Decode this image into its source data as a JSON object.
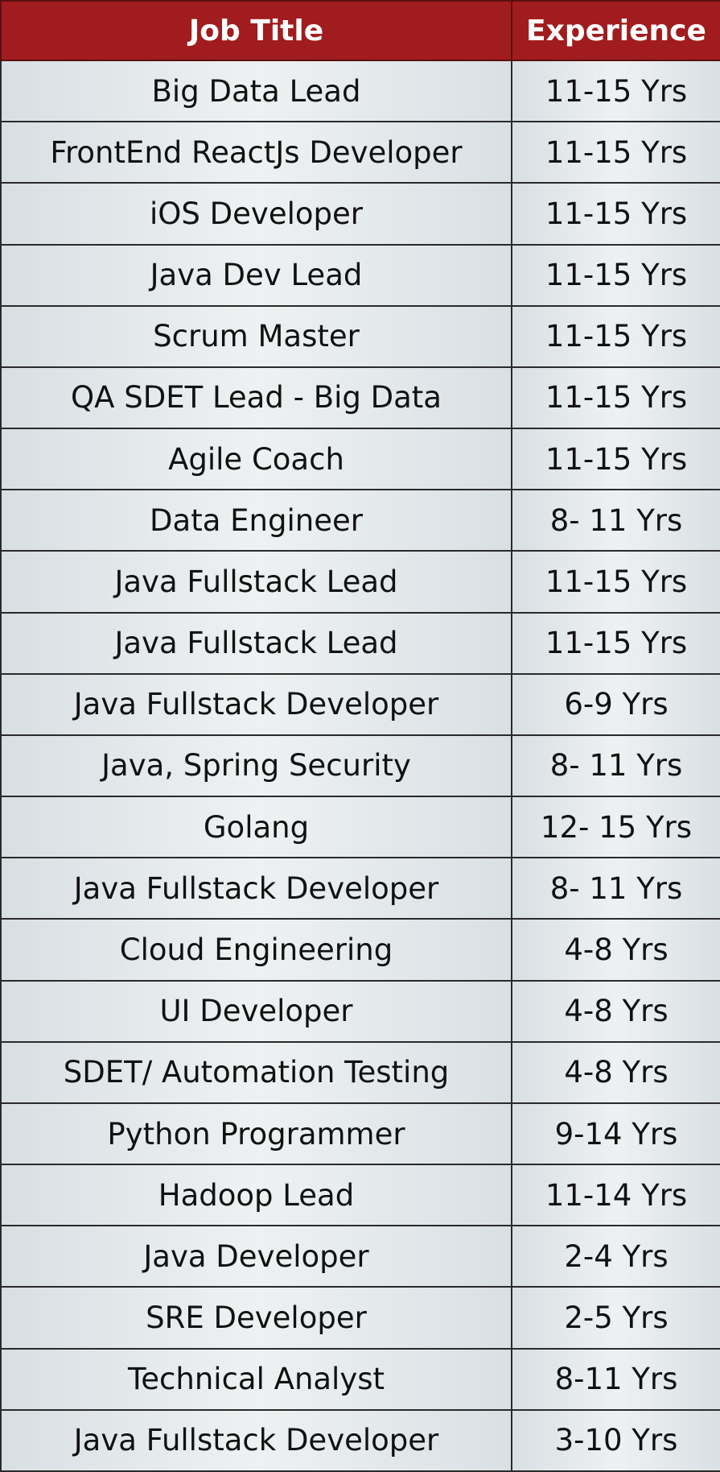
{
  "table": {
    "header": [
      "Job Title",
      "Experience"
    ],
    "rows": [
      [
        "Big Data Lead",
        "11-15 Yrs"
      ],
      [
        "FrontEnd ReactJs Developer",
        "11-15 Yrs"
      ],
      [
        "iOS Developer",
        "11-15 Yrs"
      ],
      [
        "Java Dev Lead",
        "11-15 Yrs"
      ],
      [
        "Scrum Master",
        "11-15 Yrs"
      ],
      [
        "QA SDET Lead - Big Data",
        "11-15 Yrs"
      ],
      [
        "Agile Coach",
        "11-15 Yrs"
      ],
      [
        "Data Engineer",
        "8- 11 Yrs"
      ],
      [
        "Java Fullstack Lead",
        "11-15 Yrs"
      ],
      [
        "Java Fullstack Lead",
        "11-15 Yrs"
      ],
      [
        "Java Fullstack Developer",
        "6-9 Yrs"
      ],
      [
        "Java, Spring Security",
        "8- 11 Yrs"
      ],
      [
        "Golang",
        "12- 15 Yrs"
      ],
      [
        "Java Fullstack Developer",
        "8- 11 Yrs"
      ],
      [
        "Cloud Engineering",
        "4-8 Yrs"
      ],
      [
        "UI Developer",
        "4-8 Yrs"
      ],
      [
        "SDET/ Automation Testing",
        "4-8 Yrs"
      ],
      [
        "Python Programmer",
        "9-14 Yrs"
      ],
      [
        "Hadoop Lead",
        "11-14 Yrs"
      ],
      [
        "Java Developer",
        "2-4 Yrs"
      ],
      [
        "SRE Developer",
        "2-5 Yrs"
      ],
      [
        "Technical Analyst",
        "8-11 Yrs"
      ],
      [
        "Java Fullstack Developer",
        "3-10 Yrs"
      ]
    ]
  }
}
